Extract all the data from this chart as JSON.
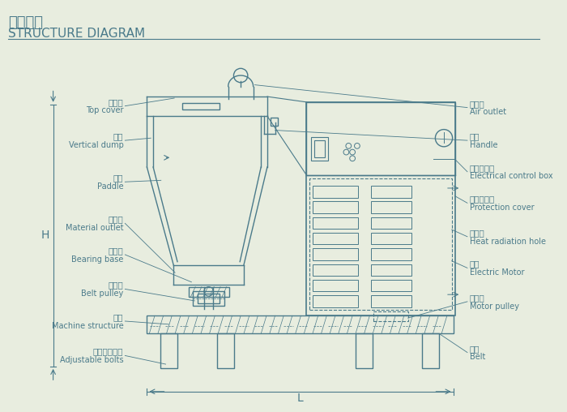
{
  "bg_color": "#e8eddf",
  "line_color": "#4a7a8a",
  "text_color": "#4a7a8a",
  "title_cn": "结构简图",
  "title_en": "STRUCTURE DIAGRAM",
  "left_labels": [
    [
      "料桶盖",
      "Top cover"
    ],
    [
      "桶体",
      "Vertical dump"
    ],
    [
      "桨叶",
      "Paddle"
    ],
    [
      "出料口",
      "Material outlet"
    ],
    [
      "轴承座",
      "Bearing base"
    ],
    [
      "皮带轮",
      "Belt pulley"
    ],
    [
      "机座",
      "Machine structure"
    ],
    [
      "皮带调节螺丝",
      "Adjustable bolts"
    ]
  ],
  "right_labels": [
    [
      "排气管",
      "Air outlet"
    ],
    [
      "手扣",
      "Handle"
    ],
    [
      "电器控制箱",
      "Electrical control box"
    ],
    [
      "电机防护罩",
      "Protection cover"
    ],
    [
      "散热孔",
      "Heat radiation hole"
    ],
    [
      "电机",
      "Electric Motor"
    ],
    [
      "电机轮",
      "Motor pulley"
    ],
    [
      "皮带",
      "Belt"
    ]
  ]
}
